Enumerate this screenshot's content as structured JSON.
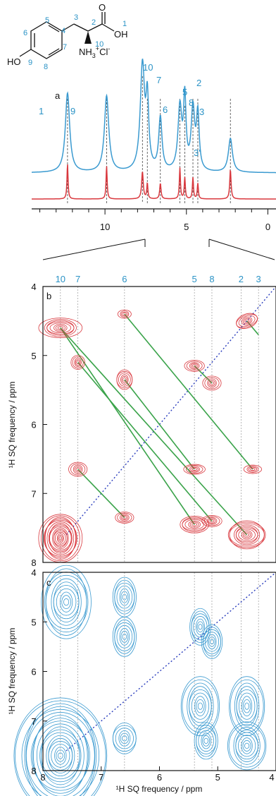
{
  "molecule": {
    "labels": {
      "oh_phenol": "HO",
      "carbonyl_o": "O",
      "oh_acid": "OH",
      "amine": "NH",
      "amine_sub": "3",
      "amine_sup": "+",
      "chloride": "Cl",
      "chloride_sup": "-"
    },
    "atom_numbers": [
      "1",
      "2",
      "3",
      "4",
      "5",
      "6",
      "7",
      "8",
      "9",
      "10"
    ]
  },
  "panel_a": {
    "label": "a",
    "peak_labels": [
      "1",
      "9",
      "10",
      "7",
      "6",
      "5",
      "8",
      "2",
      "3",
      "3'"
    ],
    "x_ticks": [
      "10",
      "5",
      "0"
    ],
    "colors": {
      "top": "#3a9ad0",
      "bottom": "#d9383e"
    }
  },
  "panel_b": {
    "label": "b",
    "top_labels": [
      "10",
      "7",
      "6",
      "5",
      "8",
      "2",
      "3"
    ],
    "y_ticks": [
      "4",
      "5",
      "6",
      "7",
      "8"
    ],
    "y_label": "¹H SQ frequency / ppm",
    "contour_color": "#d9383e",
    "link_color": "#3aa34a"
  },
  "panel_c": {
    "label": "c",
    "y_ticks": [
      "4",
      "5",
      "6",
      "7",
      "8"
    ],
    "x_ticks": [
      "8",
      "7",
      "6",
      "5",
      "4"
    ],
    "y_label": "¹H SQ frequency / ppm",
    "x_label": "¹H SQ frequency / ppm",
    "contour_color": "#3a9ad0"
  },
  "chart_data": [
    {
      "type": "line",
      "title": "",
      "xlabel": "",
      "ylabel": "",
      "xlim": [
        14.5,
        -0.5
      ],
      "x_ticks": [
        10,
        5,
        0
      ],
      "series": [
        {
          "peaks_ppm": [
            12.3,
            9.9,
            7.7,
            7.4,
            6.6,
            5.4,
            5.1,
            4.6,
            4.3,
            2.3
          ]
        },
        {
          "peaks_ppm": [
            12.3,
            9.9,
            7.7,
            7.4,
            6.6,
            5.4,
            5.1,
            4.6,
            4.3,
            2.3
          ]
        }
      ]
    },
    {
      "type": "scatter",
      "xlabel": "",
      "ylabel": "¹H SQ frequency / ppm",
      "xlim": [
        8,
        4
      ],
      "ylim": [
        4,
        8
      ],
      "diagonal": true,
      "points": [
        {
          "x": 7.7,
          "y": 4.6
        },
        {
          "x": 7.4,
          "y": 5.1
        },
        {
          "x": 6.6,
          "y": 4.4
        },
        {
          "x": 6.6,
          "y": 5.35
        },
        {
          "x": 7.4,
          "y": 6.65
        },
        {
          "x": 6.6,
          "y": 7.35
        },
        {
          "x": 5.4,
          "y": 5.15
        },
        {
          "x": 5.1,
          "y": 5.4
        },
        {
          "x": 5.4,
          "y": 6.65
        },
        {
          "x": 5.1,
          "y": 7.4
        },
        {
          "x": 4.5,
          "y": 4.5
        },
        {
          "x": 4.4,
          "y": 6.65
        },
        {
          "x": 7.7,
          "y": 7.65
        },
        {
          "x": 5.4,
          "y": 7.45
        },
        {
          "x": 4.5,
          "y": 7.6
        }
      ],
      "links": [
        {
          "from": [
            7.7,
            4.6
          ],
          "to": [
            4.5,
            7.6
          ]
        },
        {
          "from": [
            7.4,
            5.1
          ],
          "to": [
            5.1,
            7.4
          ]
        },
        {
          "from": [
            6.6,
            4.4
          ],
          "to": [
            4.4,
            6.65
          ]
        },
        {
          "from": [
            6.6,
            5.35
          ],
          "to": [
            5.4,
            6.65
          ]
        },
        {
          "from": [
            7.4,
            6.65
          ],
          "to": [
            6.6,
            7.35
          ]
        },
        {
          "from": [
            5.4,
            5.15
          ],
          "to": [
            5.1,
            5.4
          ]
        },
        {
          "from": [
            4.5,
            4.5
          ],
          "to": [
            4.3,
            4.7
          ]
        },
        {
          "from": [
            7.7,
            4.6
          ],
          "to": [
            5.4,
            7.45
          ]
        }
      ]
    },
    {
      "type": "scatter",
      "xlabel": "¹H SQ frequency / ppm",
      "ylabel": "¹H SQ frequency / ppm",
      "xlim": [
        8,
        4
      ],
      "ylim": [
        4,
        8
      ],
      "diagonal": true,
      "points": [
        {
          "x": 7.6,
          "y": 4.6
        },
        {
          "x": 6.6,
          "y": 4.5
        },
        {
          "x": 6.6,
          "y": 5.3
        },
        {
          "x": 5.3,
          "y": 5.1
        },
        {
          "x": 5.1,
          "y": 5.4
        },
        {
          "x": 5.3,
          "y": 6.7
        },
        {
          "x": 4.5,
          "y": 6.7
        },
        {
          "x": 5.2,
          "y": 7.4
        },
        {
          "x": 4.5,
          "y": 7.5
        },
        {
          "x": 7.7,
          "y": 7.7
        },
        {
          "x": 6.6,
          "y": 7.35
        }
      ]
    }
  ]
}
